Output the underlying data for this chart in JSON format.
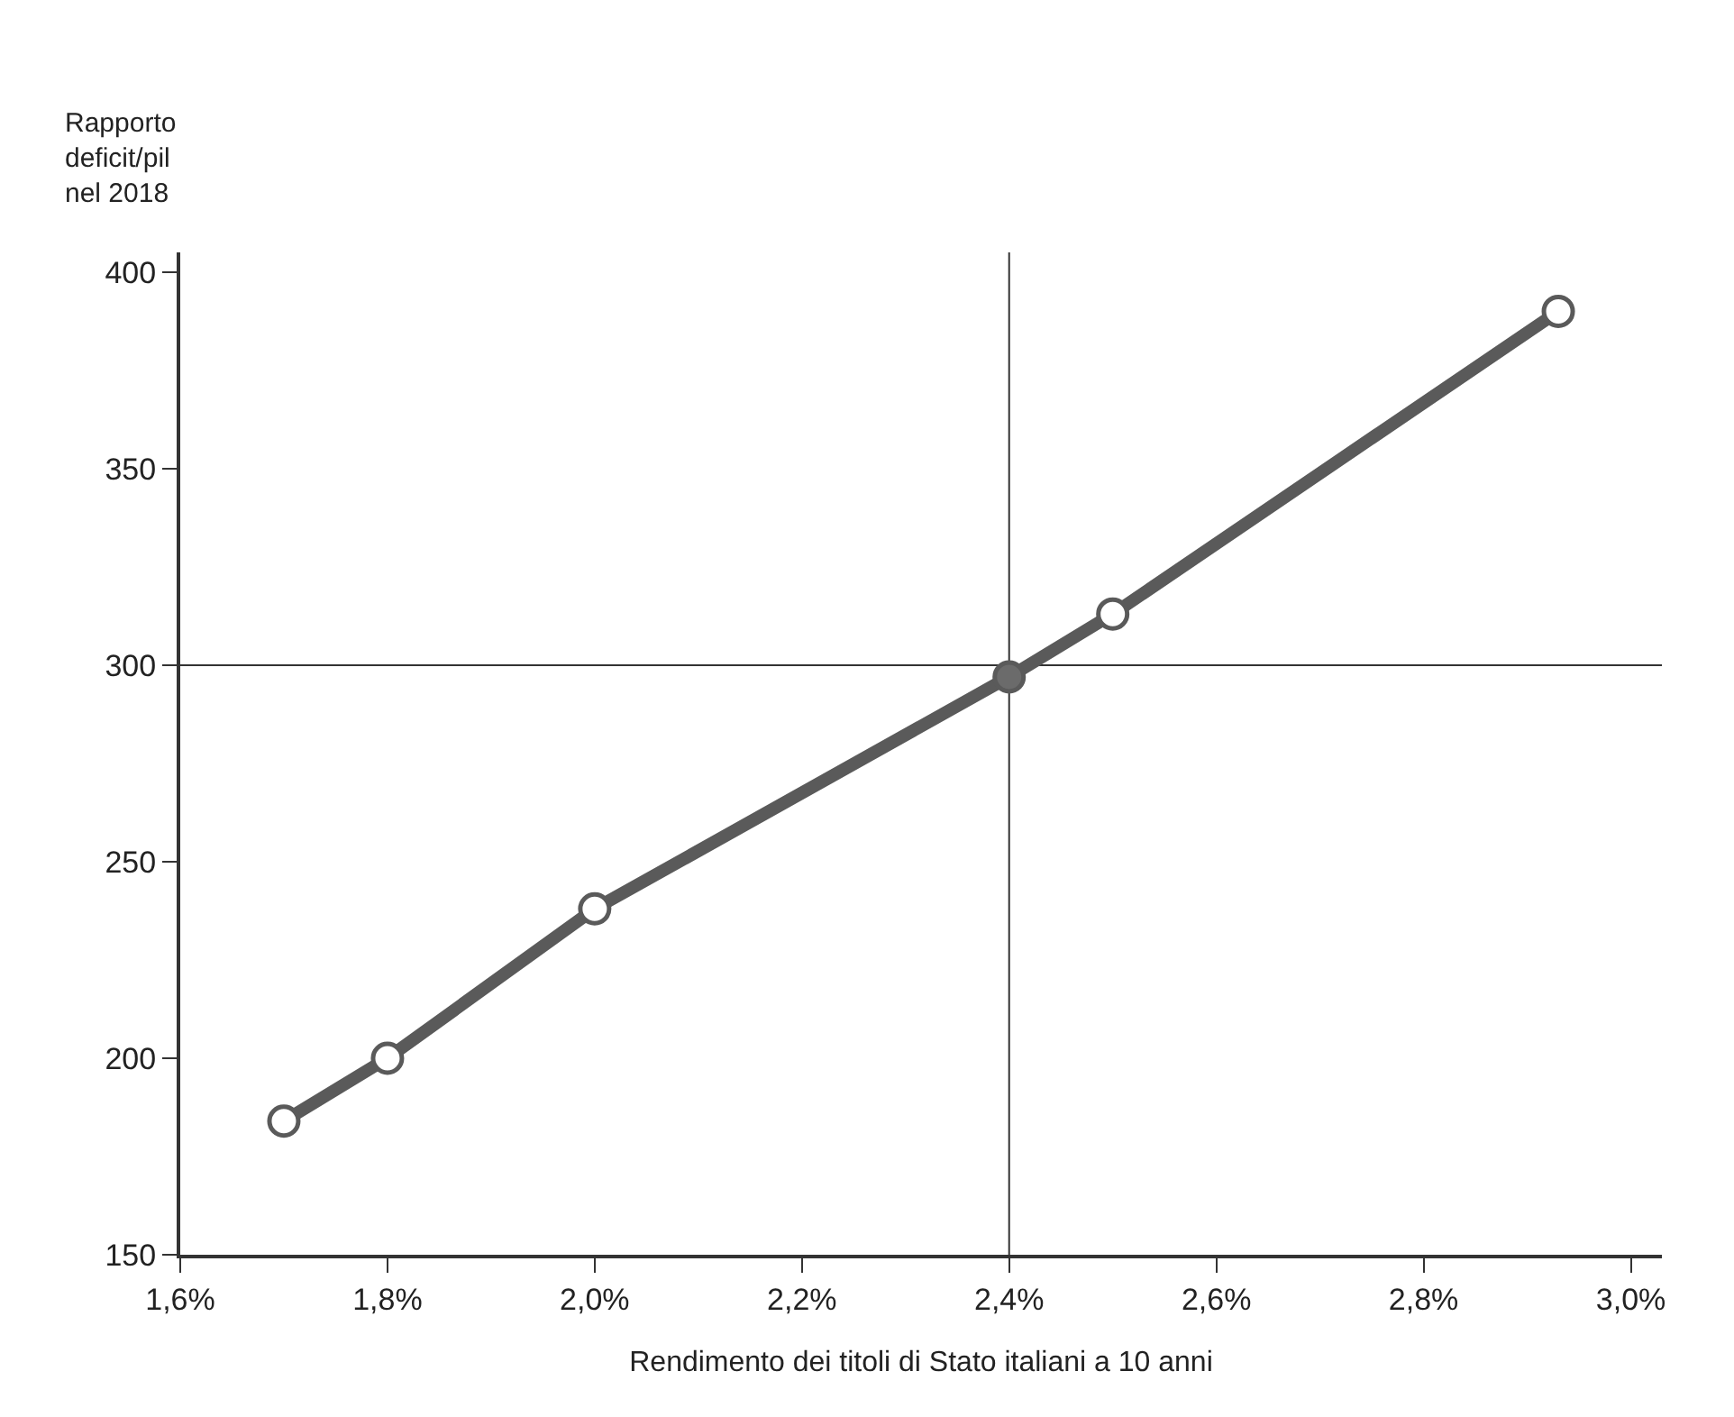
{
  "chart_data": {
    "type": "line",
    "ylabel": "Rapporto deficit/pil nel 2018",
    "xlabel": "Rendimento dei titoli di Stato italiani a 10 anni",
    "series": [
      {
        "color": "#5a5a5a",
        "x": [
          1.7,
          1.8,
          2.0,
          2.4,
          2.5,
          2.93
        ],
        "values": [
          184,
          200,
          238,
          297,
          313,
          390
        ],
        "marker": "circle",
        "colors": [
          "#ffffff",
          "#ffffff",
          "#ffffff",
          "#6b6b6b",
          "#ffffff",
          "#ffffff"
        ]
      }
    ],
    "xlim": [
      1.6,
      3.03
    ],
    "ylim": [
      150,
      405
    ],
    "xticks": [
      {
        "value": 1.6,
        "label": "1,6%"
      },
      {
        "value": 1.8,
        "label": "1,8%"
      },
      {
        "value": 2.0,
        "label": "2,0%"
      },
      {
        "value": 2.2,
        "label": "2,2%"
      },
      {
        "value": 2.4,
        "label": "2,4%"
      },
      {
        "value": 2.6,
        "label": "2,6%"
      },
      {
        "value": 2.8,
        "label": "2,8%"
      },
      {
        "value": 3.0,
        "label": "3,0%"
      }
    ],
    "yticks": [
      150,
      200,
      250,
      300,
      350,
      400
    ],
    "ref_lines": [
      {
        "axis": "y",
        "value": 300,
        "color": "#333333"
      },
      {
        "axis": "x",
        "value": 2.4,
        "color": "#333333"
      }
    ],
    "grid": false
  }
}
